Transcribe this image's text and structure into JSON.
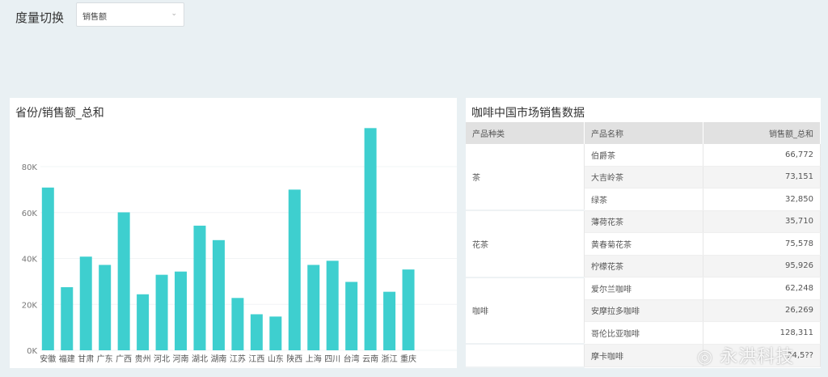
{
  "filter": {
    "label": "度量切换",
    "value": "销售额"
  },
  "chart_data": {
    "type": "bar",
    "title": "省份/销售额_总和",
    "categories": [
      "安徽",
      "福建",
      "甘肃",
      "广东",
      "广西",
      "贵州",
      "河北",
      "河南",
      "湖北",
      "湖南",
      "江苏",
      "江西",
      "山东",
      "陕西",
      "上海",
      "四川",
      "台湾",
      "云南",
      "浙江",
      "重庆"
    ],
    "values": [
      70900,
      27500,
      40800,
      37200,
      60100,
      24400,
      32900,
      34300,
      54300,
      48000,
      22800,
      15700,
      14700,
      70000,
      37200,
      39000,
      29800,
      96800,
      25500,
      35200
    ],
    "yticks": [
      "0K",
      "20K",
      "40K",
      "60K",
      "80K"
    ],
    "ylim": [
      0,
      100000
    ],
    "grid": true,
    "color": "#3ecfcf"
  },
  "table": {
    "title": "咖啡中国市场销售数据",
    "headers": [
      "产品种类",
      "产品名称",
      "销售额_总和"
    ],
    "groups": [
      {
        "category": "茶",
        "rows": [
          [
            "伯爵茶",
            "66,772"
          ],
          [
            "大吉岭茶",
            "73,151"
          ],
          [
            "绿茶",
            "32,850"
          ]
        ]
      },
      {
        "category": "花茶",
        "rows": [
          [
            "薄荷花茶",
            "35,710"
          ],
          [
            "黄春菊花茶",
            "75,578"
          ],
          [
            "柠檬花茶",
            "95,926"
          ]
        ]
      },
      {
        "category": "咖啡",
        "rows": [
          [
            "爱尔兰咖啡",
            "62,248"
          ],
          [
            "安摩拉多咖啡",
            "26,269"
          ],
          [
            "哥伦比亚咖啡",
            "128,311"
          ]
        ]
      },
      {
        "category": "",
        "rows": [
          [
            "摩卡咖啡",
            "34,5??"
          ]
        ]
      }
    ]
  },
  "watermark": "永洪科技"
}
